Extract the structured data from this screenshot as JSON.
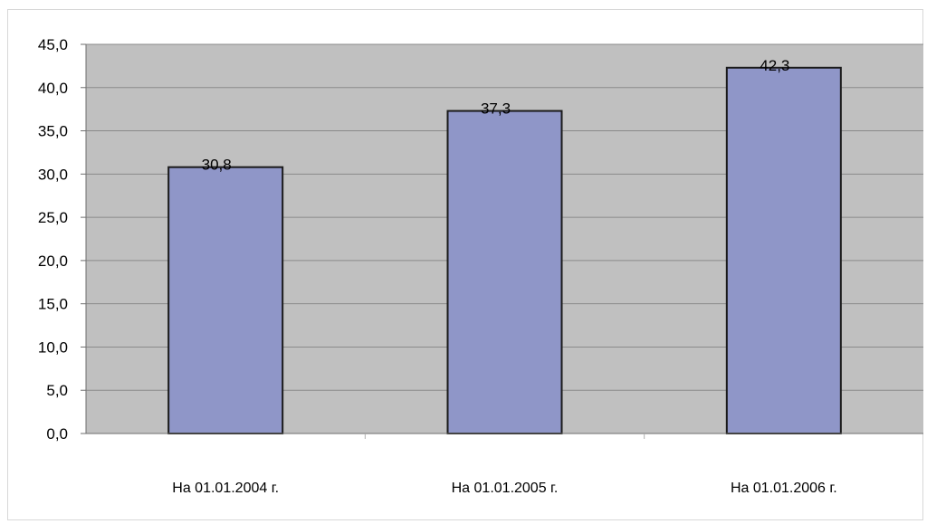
{
  "chart_data": {
    "type": "bar",
    "title": "",
    "xlabel": "",
    "ylabel": "",
    "categories": [
      "На 01.01.2004 г.",
      "На 01.01.2005 г.",
      "На 01.01.2006 г."
    ],
    "values": [
      30.8,
      37.3,
      42.3
    ],
    "data_labels": [
      "30,8",
      "37,3",
      "42,3"
    ],
    "ylim": [
      0,
      45
    ],
    "yticks": [
      "0,0",
      "5,0",
      "10,0",
      "15,0",
      "20,0",
      "25,0",
      "30,0",
      "35,0",
      "40,0",
      "45,0"
    ],
    "grid": true,
    "legend": "none"
  },
  "colors": {
    "plot_background": "#c0c0c0",
    "bar_fill": "#8f96c8",
    "bar_stroke": "#1a1a1a",
    "gridline": "#8a8a8a"
  }
}
